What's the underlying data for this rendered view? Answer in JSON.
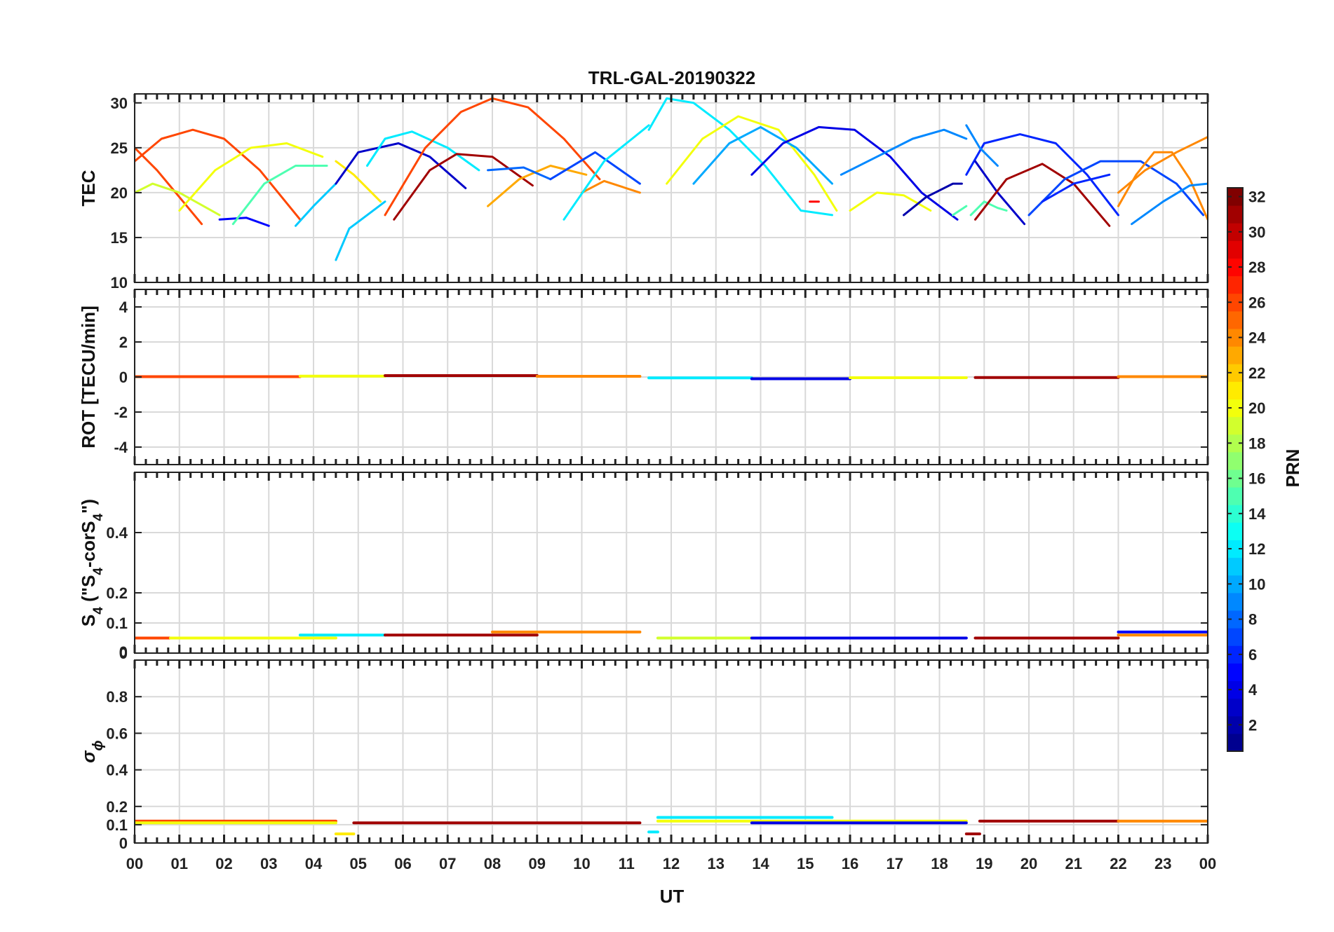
{
  "chart_data": {
    "type": "line",
    "title": "TRL-GAL-20190322",
    "xlabel": "UT",
    "x_tick_labels": [
      "00",
      "01",
      "02",
      "03",
      "04",
      "05",
      "06",
      "07",
      "08",
      "09",
      "10",
      "11",
      "12",
      "13",
      "14",
      "15",
      "16",
      "17",
      "18",
      "19",
      "20",
      "21",
      "22",
      "23",
      "00"
    ],
    "xlim": [
      0,
      24
    ],
    "grid": true,
    "colorbar": {
      "label": "PRN",
      "range": [
        1,
        32
      ],
      "ticks": [
        "2",
        "4",
        "6",
        "8",
        "10",
        "12",
        "14",
        "16",
        "18",
        "20",
        "22",
        "24",
        "26",
        "28",
        "30",
        "32"
      ],
      "colors": [
        "#00008f",
        "#0000ff",
        "#0080ff",
        "#00ffff",
        "#80ff80",
        "#ffff00",
        "#ff8000",
        "#ff0000",
        "#800000"
      ],
      "placement": "right"
    },
    "panels": [
      {
        "id": "tec",
        "ylabel": "TEC",
        "ylim": [
          10,
          31
        ],
        "y_ticks": [
          10,
          15,
          20,
          25,
          30
        ],
        "y_tick_labels": [
          "10",
          "15",
          "20",
          "25",
          "30"
        ],
        "series": [
          {
            "prn": 26,
            "x": [
              0.0,
              0.5,
              1.0,
              1.5
            ],
            "y": [
              25.0,
              22.5,
              19.5,
              16.5
            ]
          },
          {
            "prn": 26,
            "x": [
              0.0,
              0.6,
              1.3,
              2.0,
              2.8,
              3.7
            ],
            "y": [
              23.5,
              26.0,
              27.0,
              26.0,
              22.5,
              17.0
            ]
          },
          {
            "prn": 19,
            "x": [
              0.0,
              0.4,
              1.0,
              1.9
            ],
            "y": [
              20.0,
              21.0,
              20.0,
              17.5
            ]
          },
          {
            "prn": 20,
            "x": [
              1.0,
              1.8,
              2.6,
              3.4,
              4.2
            ],
            "y": [
              18.0,
              22.5,
              25.0,
              25.5,
              24.0
            ]
          },
          {
            "prn": 5,
            "x": [
              1.9,
              2.5,
              3.0
            ],
            "y": [
              17.0,
              17.2,
              16.3
            ]
          },
          {
            "prn": 15,
            "x": [
              2.2,
              2.9,
              3.6,
              4.3
            ],
            "y": [
              16.5,
              21.0,
              23.0,
              23.0
            ]
          },
          {
            "prn": 11,
            "x": [
              3.6,
              4.0,
              4.5
            ],
            "y": [
              16.3,
              18.5,
              21.0
            ]
          },
          {
            "prn": 21,
            "x": [
              4.5,
              4.9,
              5.5
            ],
            "y": [
              23.5,
              22.0,
              19.0
            ]
          },
          {
            "prn": 3,
            "x": [
              4.5,
              5.0,
              5.9,
              6.6,
              7.4
            ],
            "y": [
              21.0,
              24.5,
              25.5,
              24.0,
              20.5
            ]
          },
          {
            "prn": 11,
            "x": [
              4.5,
              4.8,
              5.2,
              5.6
            ],
            "y": [
              12.5,
              16.0,
              17.5,
              19.0
            ]
          },
          {
            "prn": 12,
            "x": [
              5.2,
              5.6,
              6.2,
              7.0,
              7.7
            ],
            "y": [
              23.0,
              26.0,
              26.8,
              25.0,
              22.5
            ]
          },
          {
            "prn": 26,
            "x": [
              5.6,
              6.5,
              7.3,
              8.0,
              8.8,
              9.6,
              10.4
            ],
            "y": [
              17.5,
              25.0,
              29.0,
              30.5,
              29.5,
              26.0,
              21.5
            ]
          },
          {
            "prn": 31,
            "x": [
              5.8,
              6.6,
              7.2,
              8.0,
              8.9
            ],
            "y": [
              17.0,
              22.5,
              24.3,
              24.0,
              20.8
            ]
          },
          {
            "prn": 23,
            "x": [
              7.9,
              8.6,
              9.3,
              10.1
            ],
            "y": [
              18.5,
              21.5,
              23.0,
              22.0
            ]
          },
          {
            "prn": 8,
            "x": [
              7.9,
              8.7,
              9.3
            ],
            "y": [
              22.5,
              22.8,
              21.5
            ]
          },
          {
            "prn": 7,
            "x": [
              9.3,
              10.3,
              11.3
            ],
            "y": [
              21.5,
              24.5,
              21.0
            ]
          },
          {
            "prn": 24,
            "x": [
              10.0,
              10.5,
              11.3
            ],
            "y": [
              20.0,
              21.3,
              20.0
            ]
          },
          {
            "prn": 12,
            "x": [
              9.6,
              10.5,
              11.5
            ],
            "y": [
              17.0,
              23.5,
              27.5
            ]
          },
          {
            "prn": 12,
            "x": [
              11.5,
              11.9,
              12.5,
              13.3,
              14.1,
              14.9,
              15.6
            ],
            "y": [
              27.0,
              30.5,
              30.0,
              27.0,
              23.0,
              18.0,
              17.5
            ]
          },
          {
            "prn": 20,
            "x": [
              11.9,
              12.7,
              13.5,
              14.4,
              15.2,
              15.7
            ],
            "y": [
              21.0,
              26.0,
              28.5,
              27.0,
              22.0,
              18.0
            ]
          },
          {
            "prn": 10,
            "x": [
              12.5,
              13.3,
              14.0,
              14.8,
              15.6
            ],
            "y": [
              21.0,
              25.5,
              27.3,
              25.0,
              21.0
            ]
          },
          {
            "prn": 4,
            "x": [
              13.8,
              14.5,
              15.3,
              16.1,
              16.9,
              17.6,
              18.4
            ],
            "y": [
              22.0,
              25.5,
              27.3,
              27.0,
              24.0,
              20.0,
              17.0
            ]
          },
          {
            "prn": 9,
            "x": [
              15.8,
              16.6,
              17.4,
              18.1,
              18.6
            ],
            "y": [
              22.0,
              24.0,
              26.0,
              27.0,
              26.0
            ]
          },
          {
            "prn": 20,
            "x": [
              16.0,
              16.6,
              17.2,
              17.8
            ],
            "y": [
              18.0,
              20.0,
              19.7,
              18.0
            ]
          },
          {
            "prn": 2,
            "x": [
              17.2,
              17.7,
              18.3,
              18.5
            ],
            "y": [
              17.5,
              19.5,
              21.0,
              21.0
            ]
          },
          {
            "prn": 15,
            "x": [
              18.3,
              18.6
            ],
            "y": [
              17.5,
              18.5
            ]
          },
          {
            "prn": 15,
            "x": [
              18.7,
              19.0,
              19.3,
              19.5
            ],
            "y": [
              17.5,
              19.0,
              18.3,
              18.0
            ]
          },
          {
            "prn": 6,
            "x": [
              18.6,
              19.0,
              19.8,
              20.6,
              21.3,
              22.0
            ],
            "y": [
              22.0,
              25.5,
              26.5,
              25.5,
              22.0,
              17.5
            ]
          },
          {
            "prn": 9,
            "x": [
              18.6,
              18.9,
              19.3
            ],
            "y": [
              27.5,
              25.0,
              23.0
            ]
          },
          {
            "prn": 3,
            "x": [
              18.8,
              19.3,
              19.9
            ],
            "y": [
              23.5,
              20.0,
              16.5
            ]
          },
          {
            "prn": 31,
            "x": [
              18.8,
              19.5,
              20.3,
              21.0,
              21.8
            ],
            "y": [
              17.0,
              21.5,
              23.2,
              21.0,
              16.3
            ]
          },
          {
            "prn": 7,
            "x": [
              20.0,
              20.8,
              21.6,
              22.5,
              23.3,
              23.9
            ],
            "y": [
              17.5,
              21.5,
              23.5,
              23.5,
              21.0,
              17.5
            ]
          },
          {
            "prn": 6,
            "x": [
              20.3,
              21.0,
              21.8
            ],
            "y": [
              19.0,
              21.0,
              22.0
            ]
          },
          {
            "prn": 24,
            "x": [
              22.0,
              22.4,
              22.8,
              23.2,
              23.6,
              24.0
            ],
            "y": [
              18.5,
              22.0,
              24.5,
              24.5,
              21.5,
              17.0
            ]
          },
          {
            "prn": 24,
            "x": [
              22.0,
              22.6,
              23.3,
              24.0
            ],
            "y": [
              20.0,
              22.5,
              24.5,
              26.2
            ]
          },
          {
            "prn": 9,
            "x": [
              22.3,
              23.0,
              23.6,
              24.0
            ],
            "y": [
              16.5,
              19.0,
              20.8,
              21.0
            ]
          },
          {
            "prn": 28,
            "x": [
              15.1,
              15.3
            ],
            "y": [
              19.0,
              19.0
            ]
          }
        ]
      },
      {
        "id": "rot",
        "ylabel": "ROT [TECU/min]",
        "ylim": [
          -5,
          5
        ],
        "y_ticks": [
          -4,
          -2,
          0,
          2,
          4
        ],
        "y_tick_labels": [
          "-4",
          "-2",
          "0",
          "2",
          "4"
        ],
        "series": [
          {
            "prn": 26,
            "x": [
              0.0,
              3.7
            ],
            "y": [
              0.02,
              0.02
            ]
          },
          {
            "prn": 20,
            "x": [
              3.7,
              5.6
            ],
            "y": [
              0.05,
              0.05
            ]
          },
          {
            "prn": 31,
            "x": [
              5.6,
              9.0
            ],
            "y": [
              0.08,
              0.08
            ]
          },
          {
            "prn": 24,
            "x": [
              9.0,
              11.3
            ],
            "y": [
              0.04,
              0.04
            ]
          },
          {
            "prn": 12,
            "x": [
              11.5,
              13.8
            ],
            "y": [
              -0.05,
              -0.05
            ]
          },
          {
            "prn": 4,
            "x": [
              13.8,
              16.0
            ],
            "y": [
              -0.1,
              -0.1
            ]
          },
          {
            "prn": 20,
            "x": [
              16.0,
              18.6
            ],
            "y": [
              -0.04,
              -0.04
            ]
          },
          {
            "prn": 31,
            "x": [
              18.8,
              22.0
            ],
            "y": [
              -0.03,
              -0.03
            ]
          },
          {
            "prn": 24,
            "x": [
              22.0,
              24.0
            ],
            "y": [
              0.02,
              0.02
            ]
          }
        ]
      },
      {
        "id": "s4",
        "ylabel": "S4 (\"S4-corS4\")",
        "ylabel_parts": {
          "s": "S",
          "sub": "4",
          "mid": " (\"S",
          "sub2": "4",
          "mid2": "-corS",
          "sub3": "4",
          "end": "\")"
        },
        "ylim": [
          0,
          0.6
        ],
        "y_ticks": [
          0,
          0.1,
          0.2,
          0.4
        ],
        "y_tick_labels": [
          "0",
          "0.1",
          "0.2",
          "0.4"
        ],
        "extra_zero_label": "0",
        "series": [
          {
            "prn": 26,
            "x": [
              0.0,
              3.7
            ],
            "y": [
              0.05,
              0.05
            ]
          },
          {
            "prn": 20,
            "x": [
              0.8,
              4.5
            ],
            "y": [
              0.05,
              0.05
            ]
          },
          {
            "prn": 12,
            "x": [
              3.7,
              5.6
            ],
            "y": [
              0.06,
              0.06
            ]
          },
          {
            "prn": 31,
            "x": [
              5.6,
              9.0
            ],
            "y": [
              0.06,
              0.06
            ]
          },
          {
            "prn": 24,
            "x": [
              8.0,
              11.3
            ],
            "y": [
              0.07,
              0.07
            ]
          },
          {
            "prn": 19,
            "x": [
              11.7,
              15.6
            ],
            "y": [
              0.05,
              0.05
            ]
          },
          {
            "prn": 4,
            "x": [
              13.8,
              18.6
            ],
            "y": [
              0.05,
              0.05
            ]
          },
          {
            "prn": 31,
            "x": [
              18.8,
              22.0
            ],
            "y": [
              0.05,
              0.05
            ]
          },
          {
            "prn": 24,
            "x": [
              22.0,
              24.0
            ],
            "y": [
              0.06,
              0.06
            ]
          },
          {
            "prn": 5,
            "x": [
              22.0,
              24.0
            ],
            "y": [
              0.07,
              0.07
            ]
          }
        ]
      },
      {
        "id": "sigma",
        "ylabel": "σ ϕ",
        "ylabel_parts": {
          "s": "σ",
          "sub": "ϕ"
        },
        "ylim": [
          0,
          1.0
        ],
        "y_ticks": [
          0,
          0.1,
          0.2,
          0.4,
          0.6,
          0.8
        ],
        "y_tick_labels": [
          "0",
          "0.1",
          "0.2",
          "0.4",
          "0.6",
          "0.8"
        ],
        "series": [
          {
            "prn": 26,
            "x": [
              0.0,
              4.5
            ],
            "y": [
              0.12,
              0.12
            ]
          },
          {
            "prn": 20,
            "x": [
              0.0,
              4.5
            ],
            "y": [
              0.11,
              0.11
            ]
          },
          {
            "prn": 21,
            "x": [
              4.5,
              4.9
            ],
            "y": [
              0.05,
              0.05
            ]
          },
          {
            "prn": 31,
            "x": [
              4.9,
              11.3
            ],
            "y": [
              0.11,
              0.11
            ]
          },
          {
            "prn": 12,
            "x": [
              11.5,
              11.7
            ],
            "y": [
              0.06,
              0.06
            ]
          },
          {
            "prn": 12,
            "x": [
              11.7,
              15.6
            ],
            "y": [
              0.14,
              0.14
            ]
          },
          {
            "prn": 20,
            "x": [
              11.7,
              18.6
            ],
            "y": [
              0.12,
              0.12
            ]
          },
          {
            "prn": 4,
            "x": [
              13.8,
              18.6
            ],
            "y": [
              0.11,
              0.11
            ]
          },
          {
            "prn": 31,
            "x": [
              18.6,
              18.9
            ],
            "y": [
              0.05,
              0.05
            ]
          },
          {
            "prn": 31,
            "x": [
              18.9,
              22.0
            ],
            "y": [
              0.12,
              0.12
            ]
          },
          {
            "prn": 24,
            "x": [
              22.0,
              24.0
            ],
            "y": [
              0.12,
              0.12
            ]
          }
        ]
      }
    ]
  }
}
